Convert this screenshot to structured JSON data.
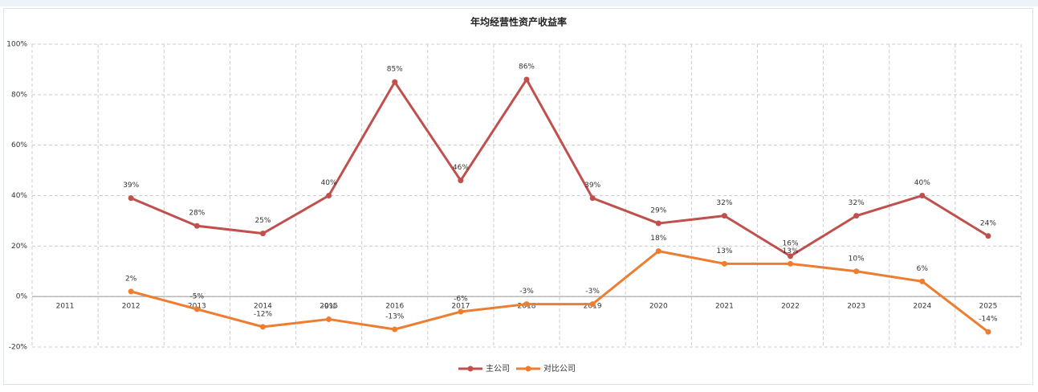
{
  "chart_data": {
    "type": "line",
    "title": "年均经营性资产收益率",
    "categories": [
      "2011",
      "2012",
      "2013",
      "2014",
      "2015",
      "2016",
      "2017",
      "2018",
      "2019",
      "2020",
      "2021",
      "2022",
      "2023",
      "2024",
      "2025"
    ],
    "series": [
      {
        "name": "主公司",
        "color": "#c0504d",
        "values": [
          null,
          39,
          28,
          25,
          40,
          85,
          46,
          86,
          39,
          29,
          32,
          16,
          32,
          40,
          24
        ],
        "value_labels": [
          null,
          "39%",
          "28%",
          "25%",
          "40%",
          "85%",
          "46%",
          "86%",
          "39%",
          "29%",
          "32%",
          "16%",
          "32%",
          "40%",
          "24%"
        ]
      },
      {
        "name": "对比公司",
        "color": "#ed7d31",
        "values": [
          null,
          2,
          -5,
          -12,
          -9,
          -13,
          -6,
          -3,
          -3,
          18,
          13,
          13,
          10,
          6,
          -14
        ],
        "value_labels": [
          null,
          "2%",
          "-5%",
          "-12%",
          "-9%",
          "-13%",
          "-6%",
          "-3%",
          "-3%",
          "18%",
          "13%",
          "13%",
          "10%",
          "6%",
          "-14%"
        ]
      }
    ],
    "ylim": [
      -20,
      100
    ],
    "yticks": [
      {
        "value": -20,
        "label": "-20%"
      },
      {
        "value": 0,
        "label": "0%"
      },
      {
        "value": 20,
        "label": "20%"
      },
      {
        "value": 40,
        "label": "40%"
      },
      {
        "value": 60,
        "label": "60%"
      },
      {
        "value": 80,
        "label": "80%"
      },
      {
        "value": 100,
        "label": "100%"
      }
    ],
    "grid": true,
    "legend": "bottom"
  }
}
